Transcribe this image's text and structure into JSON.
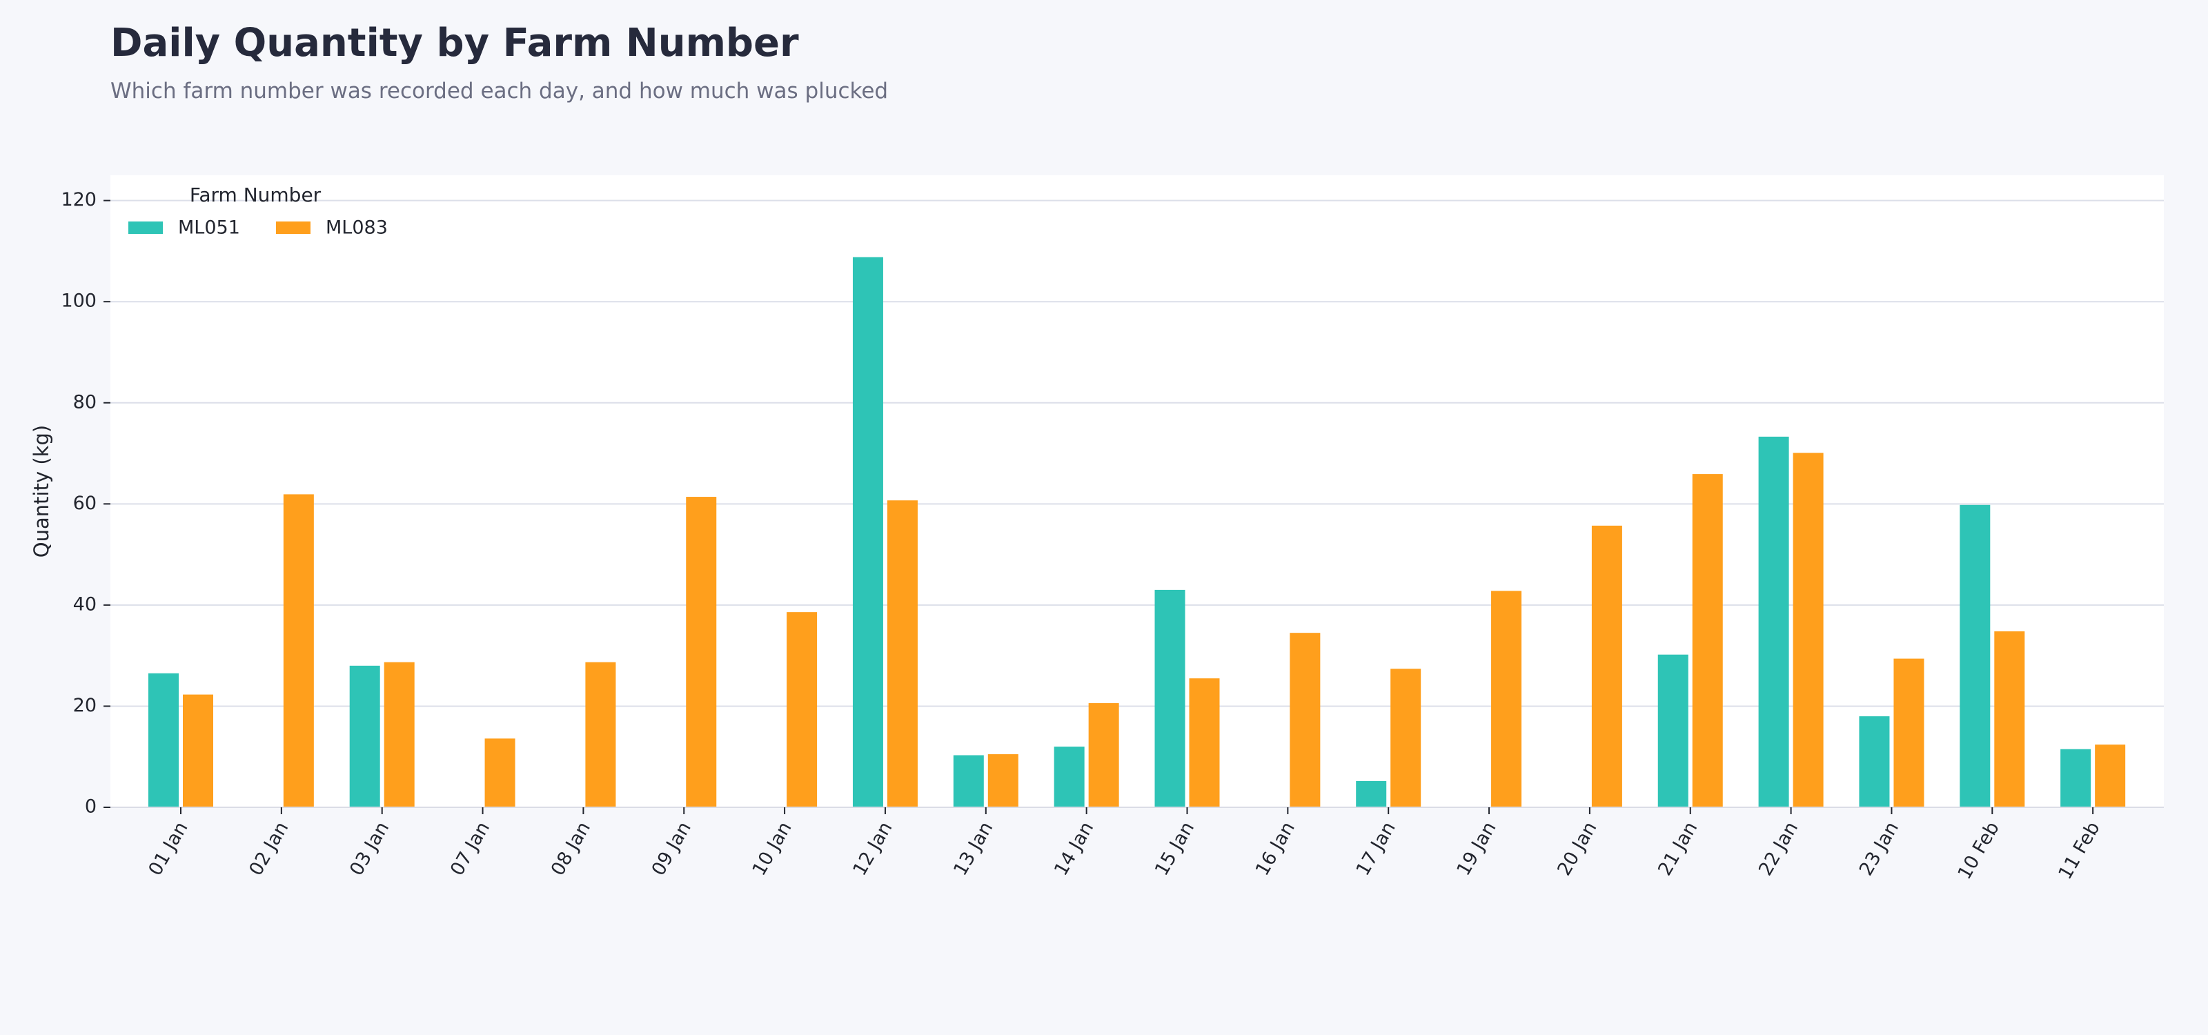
{
  "header": {
    "title": "Daily Quantity by Farm Number",
    "subtitle": "Which farm number was recorded each day, and how much was plucked"
  },
  "chart_data": {
    "type": "bar",
    "title": "Daily Quantity by Farm Number",
    "subtitle": "Which farm number was recorded each day, and how much was plucked",
    "xlabel": "",
    "ylabel": "Quantity (kg)",
    "ylim": [
      0,
      125
    ],
    "yticks": [
      0,
      20,
      40,
      60,
      80,
      100,
      120
    ],
    "grid": "horizontal",
    "legend": {
      "title": "Farm Number",
      "placement": "top-left"
    },
    "categories": [
      "01 Jan",
      "02 Jan",
      "03 Jan",
      "07 Jan",
      "08 Jan",
      "09 Jan",
      "10 Jan",
      "12 Jan",
      "13 Jan",
      "14 Jan",
      "15 Jan",
      "16 Jan",
      "17 Jan",
      "19 Jan",
      "20 Jan",
      "21 Jan",
      "22 Jan",
      "23 Jan",
      "10 Feb",
      "11 Feb"
    ],
    "series": [
      {
        "name": "ML051",
        "color": "#2ec4b6",
        "values": [
          26.5,
          0,
          28,
          0,
          0,
          0,
          0,
          108.8,
          10.3,
          12,
          43,
          0,
          5.2,
          0,
          0,
          30.2,
          73.3,
          18,
          59.8,
          11.5
        ]
      },
      {
        "name": "ML083",
        "color": "#ff9f1c",
        "values": [
          22.3,
          61.9,
          28.7,
          13.6,
          28.7,
          61.4,
          38.6,
          60.7,
          10.5,
          20.6,
          25.5,
          34.5,
          27.4,
          42.8,
          55.7,
          65.9,
          70.1,
          29.4,
          34.8,
          12.4
        ]
      }
    ]
  }
}
